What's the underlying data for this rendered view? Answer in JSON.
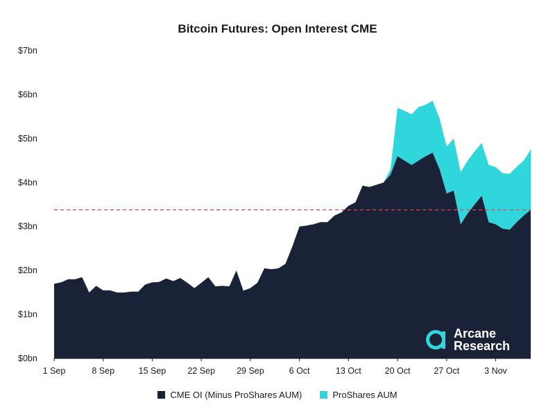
{
  "colors": {
    "oi": "#1a2238",
    "aum": "#2fd6db",
    "reference_line": "#e0405a",
    "axis": "#1a1a1a"
  },
  "logo": {
    "line1": "Arcane",
    "line2": "Research",
    "icon": "arcane-a-icon"
  },
  "chart_data": {
    "type": "area",
    "title": "Bitcoin Futures: Open Interest CME",
    "xlabel": "",
    "ylabel": "",
    "x_ticks": [
      "1 Sep",
      "8 Sep",
      "15 Sep",
      "22 Sep",
      "29 Sep",
      "6 Oct",
      "13 Oct",
      "20 Oct",
      "27 Oct",
      "3 Nov"
    ],
    "y_ticks": [
      "$0bn",
      "$1bn",
      "$2bn",
      "$3bn",
      "$4bn",
      "$5bn",
      "$6bn",
      "$7bn"
    ],
    "ylim": [
      0,
      7
    ],
    "x_start": "1 Sep",
    "reference_line": {
      "y": 3.38,
      "style": "dashed"
    },
    "grid": false,
    "legend_position": "bottom",
    "stacked": true,
    "series": [
      {
        "name": "CME OI (Minus ProShares AUM)",
        "values": [
          1.7,
          1.73,
          1.8,
          1.8,
          1.85,
          1.5,
          1.65,
          1.55,
          1.55,
          1.5,
          1.5,
          1.52,
          1.52,
          1.68,
          1.73,
          1.74,
          1.82,
          1.76,
          1.83,
          1.72,
          1.6,
          1.72,
          1.85,
          1.64,
          1.65,
          1.64,
          2.0,
          1.54,
          1.6,
          1.72,
          2.05,
          2.03,
          2.05,
          2.15,
          2.55,
          3.0,
          3.02,
          3.05,
          3.1,
          3.1,
          3.25,
          3.32,
          3.47,
          3.55,
          3.93,
          3.9,
          3.95,
          4.0,
          4.18,
          4.6,
          4.5,
          4.4,
          4.5,
          4.6,
          4.68,
          4.3,
          3.75,
          3.82,
          3.05,
          3.3,
          3.5,
          3.7,
          3.1,
          3.05,
          2.95,
          2.93,
          3.1,
          3.25,
          3.38
        ]
      },
      {
        "name": "ProShares AUM",
        "values": [
          0,
          0,
          0,
          0,
          0,
          0,
          0,
          0,
          0,
          0,
          0,
          0,
          0,
          0,
          0,
          0,
          0,
          0,
          0,
          0,
          0,
          0,
          0,
          0,
          0,
          0,
          0,
          0,
          0,
          0,
          0,
          0,
          0,
          0,
          0,
          0,
          0,
          0,
          0,
          0,
          0,
          0,
          0,
          0,
          0,
          0,
          0,
          0,
          0.12,
          1.1,
          1.13,
          1.15,
          1.22,
          1.17,
          1.18,
          1.15,
          1.07,
          1.18,
          1.19,
          1.2,
          1.21,
          1.2,
          1.3,
          1.3,
          1.26,
          1.27,
          1.26,
          1.25,
          1.37
        ]
      }
    ]
  }
}
